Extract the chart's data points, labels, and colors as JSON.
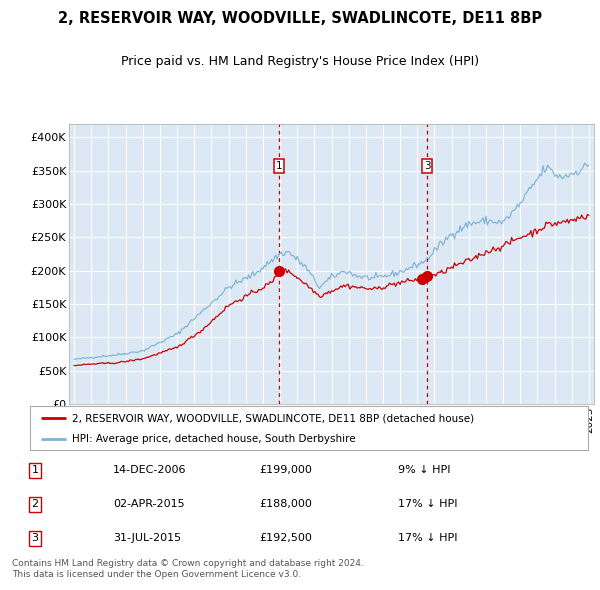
{
  "title_line1": "2, RESERVOIR WAY, WOODVILLE, SWADLINCOTE, DE11 8BP",
  "title_line2": "Price paid vs. HM Land Registry's House Price Index (HPI)",
  "red_label": "2, RESERVOIR WAY, WOODVILLE, SWADLINCOTE, DE11 8BP (detached house)",
  "blue_label": "HPI: Average price, detached house, South Derbyshire",
  "transactions": [
    {
      "num": 1,
      "date": "14-DEC-2006",
      "price": "£199,000",
      "pct": "9% ↓ HPI",
      "year": 2006.95,
      "price_val": 199000
    },
    {
      "num": 2,
      "date": "02-APR-2015",
      "price": "£188,000",
      "pct": "17% ↓ HPI",
      "year": 2015.25,
      "price_val": 188000
    },
    {
      "num": 3,
      "date": "31-JUL-2015",
      "price": "£192,500",
      "pct": "17% ↓ HPI",
      "year": 2015.58,
      "price_val": 192500
    }
  ],
  "chart_markers": [
    1,
    3
  ],
  "yticks": [
    0,
    50000,
    100000,
    150000,
    200000,
    250000,
    300000,
    350000,
    400000
  ],
  "ytick_labels": [
    "£0",
    "£50K",
    "£100K",
    "£150K",
    "£200K",
    "£250K",
    "£300K",
    "£350K",
    "£400K"
  ],
  "xlim_start": 1994.7,
  "xlim_end": 2025.3,
  "ylim": [
    0,
    420000
  ],
  "background_color": "#dce9f5",
  "red_color": "#cc0000",
  "blue_color": "#7fb3d3",
  "grid_color": "#ffffff",
  "copyright_text": "Contains HM Land Registry data © Crown copyright and database right 2024.\nThis data is licensed under the Open Government Licence v3.0."
}
